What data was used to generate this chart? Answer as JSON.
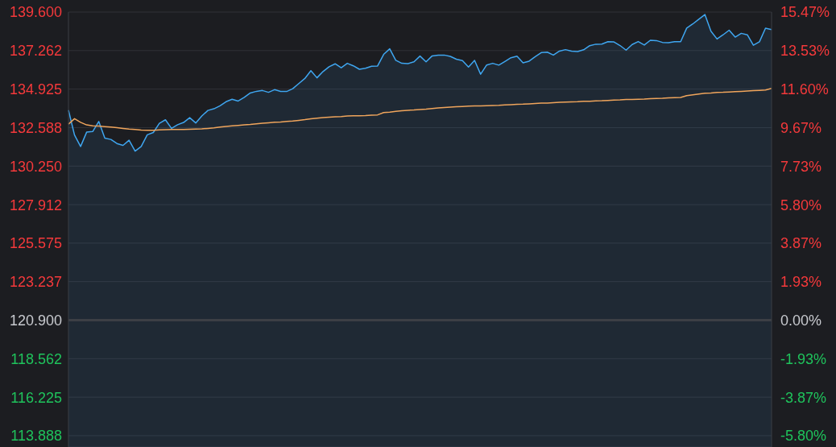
{
  "chart_data": {
    "type": "area",
    "categories": [
      null,
      null,
      null,
      null,
      null,
      null,
      null,
      null,
      null,
      null,
      null,
      null,
      null,
      null,
      null,
      null,
      null,
      null,
      null,
      null,
      null,
      null,
      null,
      null,
      null,
      null,
      null,
      null,
      null,
      null,
      null,
      null,
      null,
      null,
      null,
      null,
      null,
      null,
      null,
      null,
      null,
      null,
      null,
      null,
      null,
      null,
      null,
      null,
      null,
      null,
      null,
      null,
      null,
      null,
      null,
      null,
      null,
      null,
      null,
      null,
      null,
      null,
      null,
      null,
      null,
      null,
      null,
      null,
      null,
      null,
      null,
      null,
      null,
      null,
      null,
      null,
      null,
      null,
      null,
      null,
      null,
      null,
      null,
      null,
      null,
      null,
      null,
      null,
      null,
      null,
      null,
      null,
      null,
      null,
      null,
      null,
      null,
      null,
      null,
      null,
      null,
      null,
      null,
      null,
      null,
      null,
      null,
      null,
      null,
      null,
      null,
      null,
      null,
      null,
      null,
      null,
      null
    ],
    "series": [
      {
        "color": "#3fa6f0",
        "values": [
          133.65,
          132.14,
          131.44,
          132.31,
          132.35,
          132.96,
          131.95,
          131.87,
          131.62,
          131.51,
          131.82,
          131.16,
          131.44,
          132.15,
          132.29,
          132.85,
          133.06,
          132.54,
          132.76,
          132.9,
          133.19,
          132.87,
          133.29,
          133.63,
          133.73,
          133.91,
          134.16,
          134.31,
          134.2,
          134.42,
          134.69,
          134.79,
          134.84,
          134.73,
          134.89,
          134.78,
          134.78,
          134.95,
          135.26,
          135.57,
          136.04,
          135.61,
          135.99,
          136.28,
          136.46,
          136.22,
          136.49,
          136.34,
          136.13,
          136.19,
          136.31,
          136.33,
          137.03,
          137.37,
          136.67,
          136.49,
          136.47,
          136.58,
          136.93,
          136.58,
          136.94,
          136.99,
          136.99,
          136.91,
          136.74,
          136.65,
          136.26,
          136.67,
          135.83,
          136.39,
          136.49,
          136.38,
          136.6,
          136.83,
          136.92,
          136.52,
          136.62,
          136.89,
          137.14,
          137.17,
          136.99,
          137.23,
          137.32,
          137.23,
          137.2,
          137.31,
          137.56,
          137.65,
          137.66,
          137.8,
          137.79,
          137.57,
          137.29,
          137.63,
          137.81,
          137.6,
          137.89,
          137.87,
          137.76,
          137.74,
          137.8,
          137.8,
          138.63,
          138.88,
          139.17,
          139.45,
          138.44,
          137.97,
          138.22,
          138.5,
          138.08,
          138.31,
          138.22,
          137.59,
          137.8,
          138.62,
          138.54
        ]
      },
      {
        "type": "line",
        "color": "#f0a55c",
        "values": [
          132.8,
          133.13,
          132.91,
          132.75,
          132.7,
          132.68,
          132.65,
          132.62,
          132.58,
          132.54,
          132.5,
          132.47,
          132.44,
          132.42,
          132.43,
          132.45,
          132.46,
          132.47,
          132.48,
          132.48,
          132.49,
          132.5,
          132.51,
          132.54,
          132.57,
          132.62,
          132.66,
          132.69,
          132.72,
          132.75,
          132.78,
          132.82,
          132.85,
          132.88,
          132.91,
          132.93,
          132.96,
          132.99,
          133.03,
          133.07,
          133.12,
          133.16,
          133.19,
          133.22,
          133.24,
          133.26,
          133.29,
          133.3,
          133.31,
          133.32,
          133.34,
          133.36,
          133.5,
          133.53,
          133.57,
          133.61,
          133.64,
          133.66,
          133.69,
          133.71,
          133.75,
          133.78,
          133.81,
          133.83,
          133.85,
          133.87,
          133.89,
          133.9,
          133.91,
          133.92,
          133.93,
          133.94,
          133.96,
          133.98,
          134.0,
          134.01,
          134.03,
          134.05,
          134.07,
          134.08,
          134.1,
          134.12,
          134.14,
          134.15,
          134.16,
          134.18,
          134.19,
          134.21,
          134.22,
          134.24,
          134.26,
          134.27,
          134.29,
          134.3,
          134.31,
          134.32,
          134.34,
          134.36,
          134.37,
          134.39,
          134.41,
          134.42,
          134.53,
          134.58,
          134.63,
          134.67,
          134.69,
          134.72,
          134.73,
          134.75,
          134.77,
          134.79,
          134.81,
          134.83,
          134.85,
          134.87,
          134.97
        ]
      }
    ],
    "ylim": [
      113.2,
      139.6
    ],
    "yticks": [
      {
        "value": 139.6,
        "label": "139.600"
      },
      137.262,
      134.925,
      132.588,
      {
        "value": 130.25,
        "label": "130.250"
      },
      127.912,
      125.575,
      123.237,
      {
        "value": 120.9,
        "label": "120.900"
      },
      118.562,
      116.225,
      113.888
    ],
    "y2lim": [
      -6.37,
      15.47
    ],
    "y2ticks": [
      {
        "value": 15.47,
        "label": "15.47%"
      },
      {
        "value": 13.53,
        "label": "13.53%"
      },
      {
        "value": 11.6,
        "label": "11.60%"
      },
      {
        "value": 9.67,
        "label": "9.67%"
      },
      {
        "value": 7.73,
        "label": "7.73%"
      },
      {
        "value": 5.8,
        "label": "5.80%"
      },
      {
        "value": 3.87,
        "label": "3.87%"
      },
      {
        "value": 1.93,
        "label": "1.93%"
      },
      {
        "value": 0,
        "label": "0.00%"
      },
      {
        "value": -1.93,
        "label": "-1.93%"
      },
      {
        "value": -3.87,
        "label": "-3.87%"
      },
      {
        "value": -5.8,
        "label": "-5.80%"
      }
    ],
    "grid": "y",
    "ref_lines": [
      {
        "axis": "y",
        "value": 120.9,
        "color": "#3c3f45"
      }
    ]
  }
}
